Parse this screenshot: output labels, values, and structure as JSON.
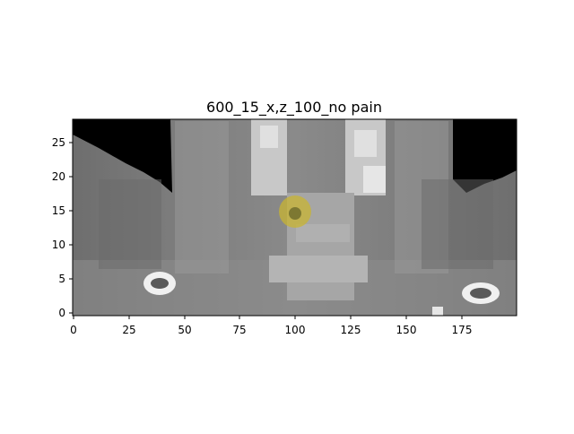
{
  "figure": {
    "title": "600_15_x,z_100_no pain",
    "x_ticks": [
      "0",
      "25",
      "50",
      "75",
      "100",
      "125",
      "150",
      "175"
    ],
    "y_ticks": [
      "0",
      "5",
      "10",
      "15",
      "20",
      "25"
    ]
  },
  "colors": {
    "background": "#ffffff",
    "marker": "#c8b432"
  },
  "image_content": "grayscale coronal CT slice (neck) with yellow circular marker"
}
